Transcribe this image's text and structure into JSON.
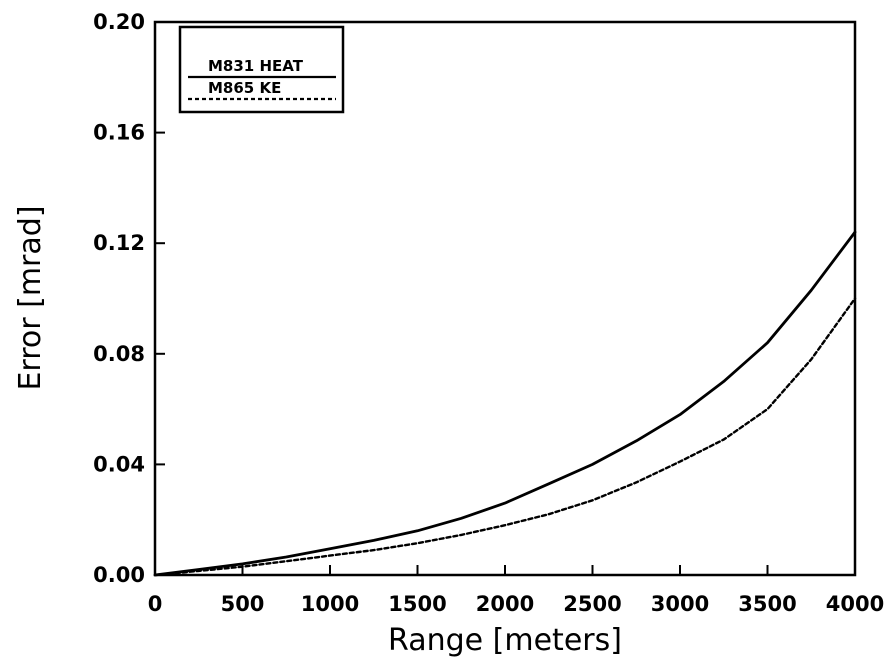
{
  "chart_data": {
    "type": "line",
    "title": "",
    "xlabel": "Range [meters]",
    "ylabel": "Error [mrad]",
    "xlim": [
      0,
      4000
    ],
    "ylim": [
      0,
      0.2
    ],
    "x_ticks": [
      0,
      500,
      1000,
      1500,
      2000,
      2500,
      3000,
      3500,
      4000
    ],
    "x_tick_labels": [
      "0",
      "500",
      "1000",
      "1500",
      "2000",
      "2500",
      "3000",
      "3500",
      "4000"
    ],
    "y_ticks": [
      0,
      0.04,
      0.08,
      0.12,
      0.16,
      0.2
    ],
    "y_tick_labels": [
      "0.00",
      "0.04",
      "0.08",
      "0.12",
      "0.16",
      "0.20"
    ],
    "grid": false,
    "legend_position": "top-left",
    "series": [
      {
        "name": "M831 HEAT",
        "line_style": "solid",
        "color": "#000000",
        "x": [
          0,
          250,
          500,
          750,
          1000,
          1250,
          1500,
          1750,
          2000,
          2250,
          2500,
          2750,
          3000,
          3250,
          3500,
          3750,
          4000
        ],
        "y": [
          0,
          0.002,
          0.004,
          0.0065,
          0.0095,
          0.0125,
          0.016,
          0.0205,
          0.026,
          0.033,
          0.04,
          0.0485,
          0.058,
          0.07,
          0.084,
          0.103,
          0.124
        ]
      },
      {
        "name": "M865 KE",
        "line_style": "dashed",
        "color": "#000000",
        "x": [
          0,
          250,
          500,
          750,
          1000,
          1250,
          1500,
          1750,
          2000,
          2250,
          2500,
          2750,
          3000,
          3250,
          3500,
          3750,
          4000
        ],
        "y": [
          0,
          0.0015,
          0.003,
          0.005,
          0.007,
          0.009,
          0.0115,
          0.0145,
          0.018,
          0.022,
          0.027,
          0.0335,
          0.041,
          0.049,
          0.06,
          0.078,
          0.1
        ]
      }
    ]
  }
}
